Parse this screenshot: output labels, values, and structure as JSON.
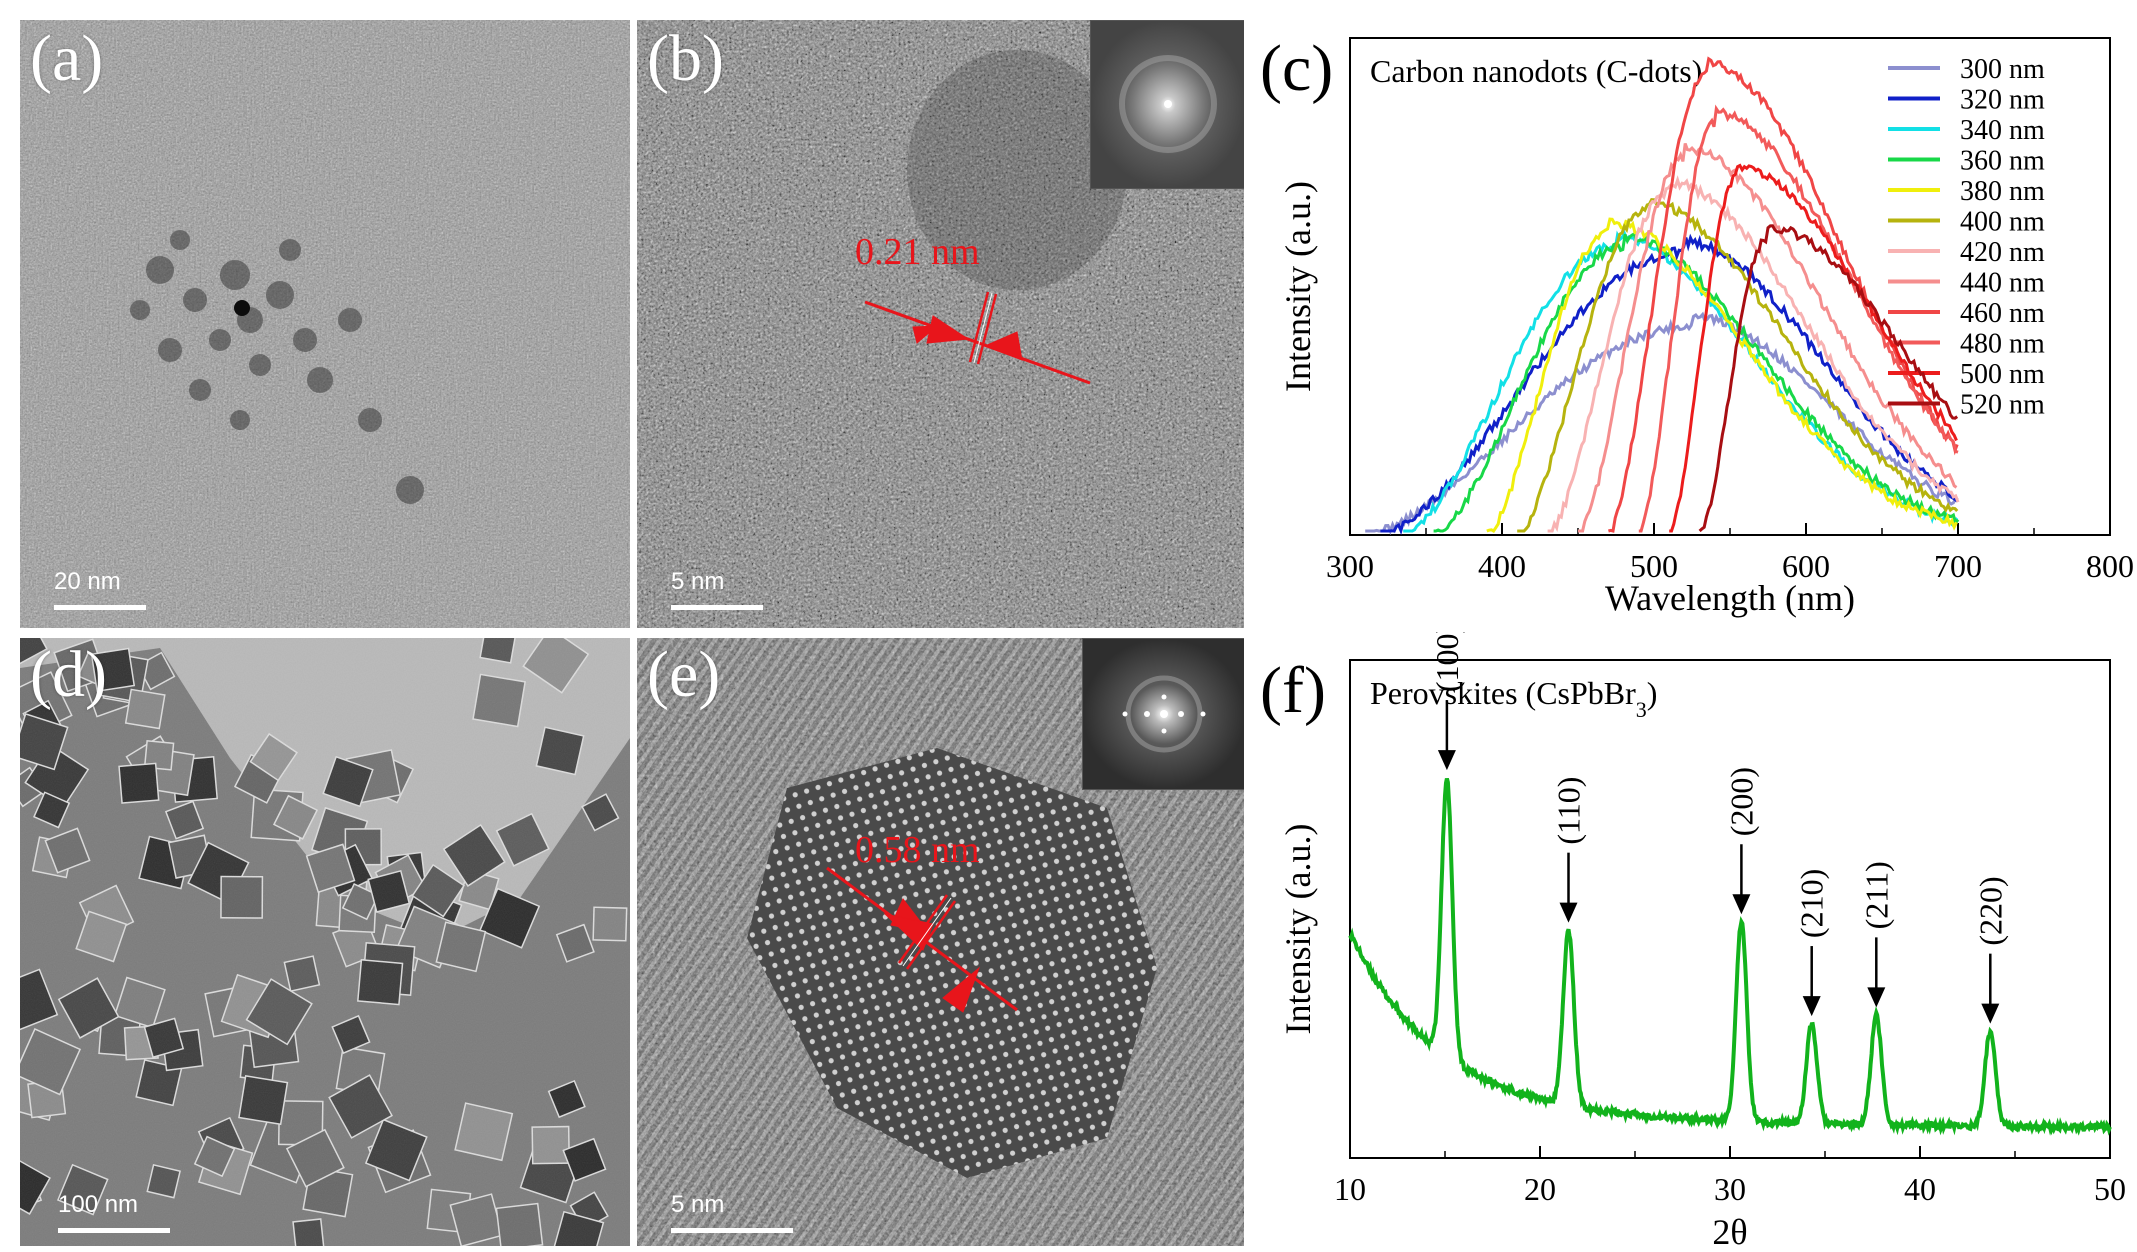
{
  "panel_labels": {
    "a": "(a)",
    "b": "(b)",
    "c": "(c)",
    "d": "(d)",
    "e": "(e)",
    "f": "(f)"
  },
  "scale_bars": {
    "a": "20 nm",
    "b": "5 nm",
    "d": "100 nm",
    "e": "5 nm"
  },
  "lattice_annotations": {
    "b": "0.21 nm",
    "e": "0.58 nm"
  },
  "colors": {
    "red_annotation": "#e8151b",
    "xrd_line": "#12b31c"
  },
  "chart_data": [
    {
      "id": "c",
      "type": "line",
      "title": "Carbon nanodots (C-dots)",
      "xlabel": "Wavelength (nm)",
      "ylabel": "Intensity (a.u.)",
      "xlim": [
        300,
        800
      ],
      "ylim": [
        0,
        1
      ],
      "xticks": [
        300,
        400,
        500,
        600,
        700,
        800
      ],
      "legend_position": "top-right",
      "series": [
        {
          "name": "300 nm",
          "color": "#8c8fcf",
          "start": 310,
          "end": 700,
          "peak": 525,
          "height": 0.42
        },
        {
          "name": "320 nm",
          "color": "#1020c8",
          "start": 320,
          "end": 700,
          "peak": 520,
          "height": 0.57
        },
        {
          "name": "340 nm",
          "color": "#12e0e6",
          "start": 335,
          "end": 700,
          "peak": 475,
          "height": 0.58
        },
        {
          "name": "360 nm",
          "color": "#18d848",
          "start": 355,
          "end": 700,
          "peak": 480,
          "height": 0.58
        },
        {
          "name": "380 nm",
          "color": "#f0ef0c",
          "start": 390,
          "end": 700,
          "peak": 470,
          "height": 0.61
        },
        {
          "name": "400 nm",
          "color": "#b6b30e",
          "start": 410,
          "end": 700,
          "peak": 495,
          "height": 0.65
        },
        {
          "name": "420 nm",
          "color": "#f8b2b2",
          "start": 430,
          "end": 700,
          "peak": 510,
          "height": 0.69
        },
        {
          "name": "440 nm",
          "color": "#f58e8e",
          "start": 450,
          "end": 700,
          "peak": 520,
          "height": 0.76
        },
        {
          "name": "460 nm",
          "color": "#f04646",
          "start": 470,
          "end": 700,
          "peak": 535,
          "height": 0.93
        },
        {
          "name": "480 nm",
          "color": "#f25a5a",
          "start": 490,
          "end": 700,
          "peak": 540,
          "height": 0.83
        },
        {
          "name": "500 nm",
          "color": "#ec1c1c",
          "start": 510,
          "end": 700,
          "peak": 555,
          "height": 0.72
        },
        {
          "name": "520 nm",
          "color": "#a80e12",
          "start": 530,
          "end": 700,
          "peak": 575,
          "height": 0.6
        }
      ]
    },
    {
      "id": "f",
      "type": "line",
      "title": "Perovskites (CsPbBr",
      "title_subscript": "3",
      "title_close": ")",
      "xlabel": "2θ",
      "ylabel": "Intensity (a.u.)",
      "xlim": [
        10,
        50
      ],
      "ylim": [
        0,
        1
      ],
      "xticks": [
        10,
        20,
        30,
        40,
        50
      ],
      "legend_position": "none",
      "peaks": [
        {
          "label": "(100)",
          "x": 15.1,
          "height": 0.56
        },
        {
          "label": "(110)",
          "x": 21.5,
          "height": 0.35
        },
        {
          "label": "(200)",
          "x": 30.6,
          "height": 0.4
        },
        {
          "label": "(210)",
          "x": 34.3,
          "height": 0.2
        },
        {
          "label": "(211)",
          "x": 37.7,
          "height": 0.22
        },
        {
          "label": "(220)",
          "x": 43.7,
          "height": 0.19
        }
      ],
      "baseline": {
        "start": 0.4,
        "end": 0.06
      }
    }
  ]
}
